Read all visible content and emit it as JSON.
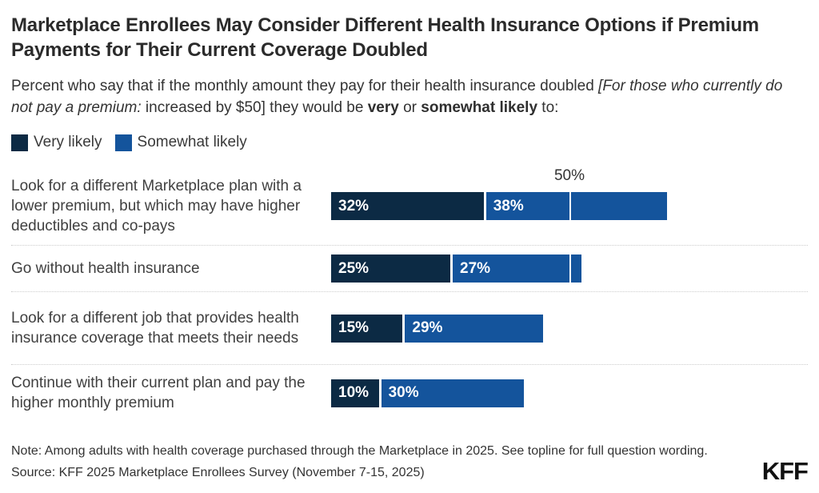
{
  "title": "Marketplace Enrollees May Consider Different Health Insurance Options if Premium Payments for Their Current Coverage Doubled",
  "subtitle": {
    "p1": "Percent who say that if the monthly amount they pay for their health insurance doubled ",
    "italic": "[For those who currently do not pay a premium:",
    "p2": " increased by $50] they would be ",
    "bold1": "very",
    "p3": " or ",
    "bold2": "somewhat likely",
    "p4": " to:"
  },
  "legend": {
    "items": [
      {
        "label": "Very likely",
        "color": "#0C2A44"
      },
      {
        "label": "Somewhat likely",
        "color": "#14549C"
      }
    ]
  },
  "chart_data": {
    "type": "bar",
    "orientation": "horizontal",
    "stacked": true,
    "unit": "%",
    "xlim": [
      0,
      100
    ],
    "axis_marker": {
      "value": 50,
      "label": "50%"
    },
    "gridlines": "single white tick at 50% visible over bars",
    "legend_position": "top-left",
    "categories": [
      "Look for a different Marketplace plan with a lower premium, but which may have higher deductibles and co-pays",
      "Go without health insurance",
      "Look for a different job that provides health insurance coverage that meets their needs",
      "Continue with their current plan and pay the higher monthly premium"
    ],
    "series": [
      {
        "name": "Very likely",
        "color": "#0C2A44",
        "values": [
          32,
          25,
          15,
          10
        ]
      },
      {
        "name": "Somewhat likely",
        "color": "#14549C",
        "values": [
          38,
          27,
          29,
          30
        ]
      }
    ]
  },
  "footer": {
    "note": "Note: Among adults with health coverage purchased through the Marketplace in 2025. See topline for full question wording.",
    "source": "Source: KFF 2025 Marketplace Enrollees Survey (November 7-15, 2025)",
    "logo": "KFF"
  }
}
